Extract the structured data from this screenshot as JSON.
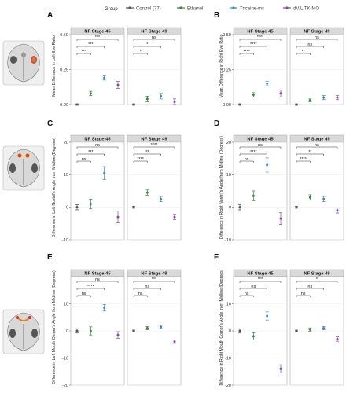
{
  "legend": {
    "title": "Group",
    "items": [
      {
        "label": "Control (77)",
        "color": "#555555"
      },
      {
        "label": "Ethanol",
        "color": "#2e8b3a"
      },
      {
        "label": "Tricaine-ms",
        "color": "#3a86c8"
      },
      {
        "label": "dV/L TK-MO",
        "color": "#8e44ad"
      }
    ]
  },
  "chart_data": [
    {
      "panel": "A",
      "type": "scatter",
      "ylabel": "Mean Difference in Left Eye Ratio",
      "ylim": [
        0,
        0.5
      ],
      "yticks": [
        0,
        0.25,
        0.5
      ],
      "ytick_labels": [
        "0.00",
        "0.25",
        "0.50"
      ],
      "facets": [
        {
          "title": "NF Stage 45",
          "points": [
            {
              "g": 0,
              "y": 0.0,
              "e": 0.005
            },
            {
              "g": 1,
              "y": 0.08,
              "e": 0.015
            },
            {
              "g": 2,
              "y": 0.19,
              "e": 0.015
            },
            {
              "g": 3,
              "y": 0.14,
              "e": 0.025
            }
          ],
          "brackets": [
            {
              "to": 3,
              "label": "***"
            },
            {
              "to": 2,
              "label": "***"
            },
            {
              "to": 1,
              "label": "***"
            }
          ]
        },
        {
          "title": "NF Stage 49",
          "points": [
            {
              "g": 0,
              "y": 0.0,
              "e": 0.005
            },
            {
              "g": 1,
              "y": 0.04,
              "e": 0.02
            },
            {
              "g": 2,
              "y": 0.06,
              "e": 0.02
            },
            {
              "g": 3,
              "y": 0.02,
              "e": 0.02
            }
          ],
          "brackets": [
            {
              "to": 3,
              "label": "ns"
            },
            {
              "to": 2,
              "label": "*"
            },
            {
              "to": 1,
              "label": "*"
            }
          ]
        }
      ]
    },
    {
      "panel": "B",
      "type": "scatter",
      "ylabel": "Mean Difference in Right Eye Ratio",
      "ylim": [
        0,
        0.5
      ],
      "yticks": [
        0,
        0.25,
        0.5
      ],
      "ytick_labels": [
        "0.00",
        "0.25",
        "0.50"
      ],
      "facets": [
        {
          "title": "NF Stage 45",
          "points": [
            {
              "g": 0,
              "y": 0.0,
              "e": 0.005
            },
            {
              "g": 1,
              "y": 0.07,
              "e": 0.015
            },
            {
              "g": 2,
              "y": 0.15,
              "e": 0.015
            },
            {
              "g": 3,
              "y": 0.08,
              "e": 0.025
            }
          ],
          "brackets": [
            {
              "to": 3,
              "label": "****"
            },
            {
              "to": 2,
              "label": "****"
            },
            {
              "to": 1,
              "label": "****"
            }
          ]
        },
        {
          "title": "NF Stage 49",
          "points": [
            {
              "g": 0,
              "y": 0.0,
              "e": 0.005
            },
            {
              "g": 1,
              "y": 0.03,
              "e": 0.01
            },
            {
              "g": 2,
              "y": 0.05,
              "e": 0.015
            },
            {
              "g": 3,
              "y": 0.05,
              "e": 0.015
            }
          ],
          "brackets": [
            {
              "to": 3,
              "label": "ns"
            },
            {
              "to": 2,
              "label": "ns"
            },
            {
              "to": 1,
              "label": "**"
            }
          ]
        }
      ]
    },
    {
      "panel": "C",
      "type": "scatter",
      "ylabel": "Difference in Left Nostril's Angle from Midline (Degrees)",
      "ylim": [
        -10,
        20
      ],
      "yticks": [
        -10,
        0,
        10,
        20
      ],
      "ytick_labels": [
        "-10",
        "0",
        "10",
        "20"
      ],
      "facets": [
        {
          "title": "NF Stage 45",
          "points": [
            {
              "g": 0,
              "y": 0,
              "e": 0.8
            },
            {
              "g": 1,
              "y": 1,
              "e": 1.5
            },
            {
              "g": 2,
              "y": 10.5,
              "e": 2
            },
            {
              "g": 3,
              "y": -3,
              "e": 1.8
            }
          ],
          "brackets": [
            {
              "to": 3,
              "label": "ns"
            },
            {
              "to": 2,
              "label": "***"
            },
            {
              "to": 1,
              "label": "ns"
            }
          ]
        },
        {
          "title": "NF Stage 49",
          "points": [
            {
              "g": 0,
              "y": 0,
              "e": 0.3
            },
            {
              "g": 1,
              "y": 4.5,
              "e": 0.8
            },
            {
              "g": 2,
              "y": 2.5,
              "e": 0.8
            },
            {
              "g": 3,
              "y": -3,
              "e": 0.8
            }
          ],
          "brackets": [
            {
              "to": 3,
              "label": "****"
            },
            {
              "to": 2,
              "label": "**"
            },
            {
              "to": 1,
              "label": "****"
            }
          ]
        }
      ]
    },
    {
      "panel": "D",
      "type": "scatter",
      "ylabel": "Difference in Right Nostril's Angle from Midline (Degrees)",
      "ylim": [
        -10,
        20
      ],
      "yticks": [
        -10,
        0,
        10,
        20
      ],
      "ytick_labels": [
        "-10",
        "0",
        "10",
        "20"
      ],
      "facets": [
        {
          "title": "NF Stage 45",
          "points": [
            {
              "g": 0,
              "y": 0,
              "e": 0.8
            },
            {
              "g": 1,
              "y": 3.5,
              "e": 1.5
            },
            {
              "g": 2,
              "y": 13,
              "e": 2.2
            },
            {
              "g": 3,
              "y": -3.5,
              "e": 1.8
            }
          ],
          "brackets": [
            {
              "to": 3,
              "label": "ns"
            },
            {
              "to": 2,
              "label": "****"
            },
            {
              "to": 1,
              "label": "ns"
            }
          ]
        },
        {
          "title": "NF Stage 49",
          "points": [
            {
              "g": 0,
              "y": 0,
              "e": 0.3
            },
            {
              "g": 1,
              "y": 3,
              "e": 0.8
            },
            {
              "g": 2,
              "y": 2.5,
              "e": 0.8
            },
            {
              "g": 3,
              "y": -1,
              "e": 0.8
            }
          ],
          "brackets": [
            {
              "to": 3,
              "label": "ns"
            },
            {
              "to": 2,
              "label": "**"
            },
            {
              "to": 1,
              "label": "****"
            }
          ]
        }
      ]
    },
    {
      "panel": "E",
      "type": "scatter",
      "ylabel": "Difference in Left Mouth Corner's Angle from Midline (Degrees)",
      "ylim": [
        -20,
        20
      ],
      "yticks": [
        -20,
        -10,
        0,
        10
      ],
      "ytick_labels": [
        "-20",
        "-10",
        "0",
        "10"
      ],
      "facets": [
        {
          "title": "NF Stage 45",
          "points": [
            {
              "g": 0,
              "y": 0,
              "e": 0.8
            },
            {
              "g": 1,
              "y": 0,
              "e": 1.5
            },
            {
              "g": 2,
              "y": 8.5,
              "e": 1.2
            },
            {
              "g": 3,
              "y": -1.5,
              "e": 1.2
            }
          ],
          "brackets": [
            {
              "to": 3,
              "label": "ns"
            },
            {
              "to": 2,
              "label": "****"
            },
            {
              "to": 1,
              "label": "ns"
            }
          ]
        },
        {
          "title": "NF Stage 49",
          "points": [
            {
              "g": 0,
              "y": 0,
              "e": 0.3
            },
            {
              "g": 1,
              "y": 1,
              "e": 0.6
            },
            {
              "g": 2,
              "y": 1.5,
              "e": 0.6
            },
            {
              "g": 3,
              "y": -4,
              "e": 0.6
            }
          ],
          "brackets": [
            {
              "to": 3,
              "label": "***"
            },
            {
              "to": 2,
              "label": "ns"
            },
            {
              "to": 1,
              "label": "ns"
            }
          ]
        }
      ]
    },
    {
      "panel": "F",
      "type": "scatter",
      "ylabel": "Difference in Right Mouth Corner's Angle from Midline (Degrees)",
      "ylim": [
        -20,
        20
      ],
      "yticks": [
        -20,
        -10,
        0,
        10
      ],
      "ytick_labels": [
        "-20",
        "-10",
        "0",
        "10"
      ],
      "facets": [
        {
          "title": "NF Stage 45",
          "points": [
            {
              "g": 0,
              "y": 0,
              "e": 0.8
            },
            {
              "g": 1,
              "y": -2,
              "e": 1.3
            },
            {
              "g": 2,
              "y": 5.5,
              "e": 1.5
            },
            {
              "g": 3,
              "y": -14,
              "e": 1.5
            }
          ],
          "brackets": [
            {
              "to": 3,
              "label": "***"
            },
            {
              "to": 2,
              "label": "ns"
            },
            {
              "to": 1,
              "label": "ns"
            }
          ]
        },
        {
          "title": "NF Stage 49",
          "points": [
            {
              "g": 0,
              "y": 0,
              "e": 0.3
            },
            {
              "g": 1,
              "y": 0.5,
              "e": 0.6
            },
            {
              "g": 2,
              "y": 1,
              "e": 0.6
            },
            {
              "g": 3,
              "y": -3,
              "e": 0.8
            }
          ],
          "brackets": [
            {
              "to": 3,
              "label": "*"
            },
            {
              "to": 2,
              "label": "ns"
            },
            {
              "to": 1,
              "label": "ns"
            }
          ]
        }
      ]
    }
  ]
}
